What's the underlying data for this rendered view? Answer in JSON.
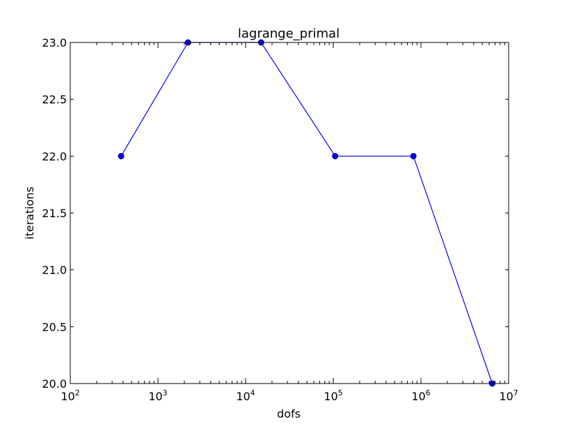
{
  "chart_data": {
    "type": "line",
    "title": "lagrange_primal",
    "xlabel": "dofs",
    "ylabel": "iterations",
    "xscale": "log",
    "xlim": [
      100,
      10000000
    ],
    "ylim": [
      20.0,
      23.0
    ],
    "xticks": [
      {
        "value": 100,
        "base": "10",
        "exp": "2"
      },
      {
        "value": 1000,
        "base": "10",
        "exp": "3"
      },
      {
        "value": 10000,
        "base": "10",
        "exp": "4"
      },
      {
        "value": 100000,
        "base": "10",
        "exp": "5"
      },
      {
        "value": 1000000,
        "base": "10",
        "exp": "6"
      },
      {
        "value": 10000000,
        "base": "10",
        "exp": "7"
      }
    ],
    "yticks": [
      "20.0",
      "20.5",
      "21.0",
      "21.5",
      "22.0",
      "22.5",
      "23.0"
    ],
    "grid": false,
    "series": [
      {
        "color": "#0000ff",
        "marker": "circle",
        "x": [
          380,
          2200,
          15000,
          105000,
          820000,
          6500000
        ],
        "y": [
          22,
          23,
          23,
          22,
          22,
          20
        ]
      }
    ]
  }
}
